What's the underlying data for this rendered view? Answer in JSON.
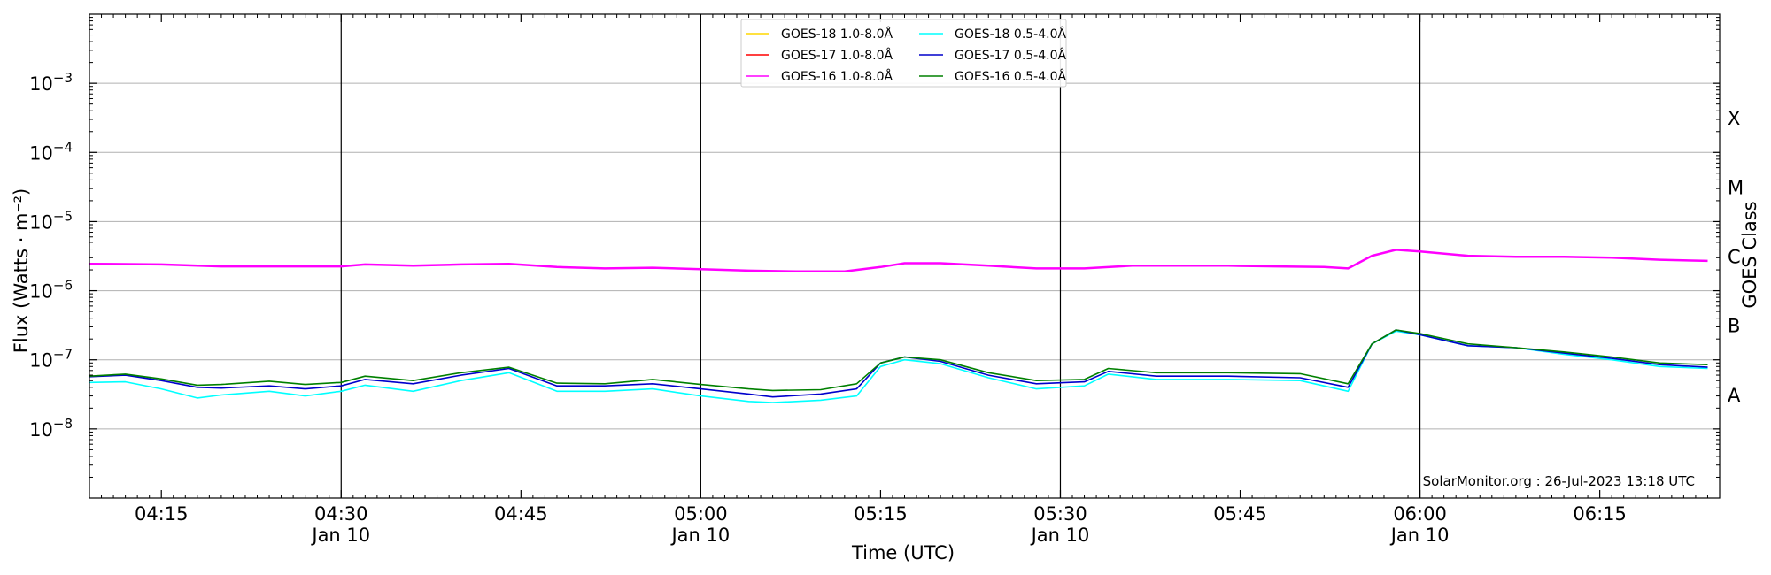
{
  "chart_data": {
    "type": "line",
    "xlabel": "Time (UTC)",
    "ylabel": "Flux (Watts · m⁻²)",
    "y2label": "GOES Class",
    "y_scale": "log",
    "ylim": [
      1e-09,
      0.01
    ],
    "xlim": [
      "04:09",
      "06:25"
    ],
    "grid": "horizontal",
    "legend_placement": "top-center",
    "credit": "SolarMonitor.org : 26-Jul-2023 13:18 UTC",
    "x_ticks": [
      {
        "t": "04:15",
        "label": "04:15",
        "sub": ""
      },
      {
        "t": "04:30",
        "label": "04:30",
        "sub": "Jan 10"
      },
      {
        "t": "04:45",
        "label": "04:45",
        "sub": ""
      },
      {
        "t": "05:00",
        "label": "05:00",
        "sub": "Jan 10"
      },
      {
        "t": "05:15",
        "label": "05:15",
        "sub": ""
      },
      {
        "t": "05:30",
        "label": "05:30",
        "sub": "Jan 10"
      },
      {
        "t": "05:45",
        "label": "05:45",
        "sub": ""
      },
      {
        "t": "06:00",
        "label": "06:00",
        "sub": "Jan 10"
      },
      {
        "t": "06:15",
        "label": "06:15",
        "sub": ""
      }
    ],
    "day_lines": [
      "04:30",
      "05:00",
      "05:30",
      "06:00"
    ],
    "y_ticks": [
      {
        "value": 0.001,
        "base": "10",
        "exp": "−3"
      },
      {
        "value": 0.0001,
        "base": "10",
        "exp": "−4"
      },
      {
        "value": 1e-05,
        "base": "10",
        "exp": "−5"
      },
      {
        "value": 1e-06,
        "base": "10",
        "exp": "−6"
      },
      {
        "value": 1e-07,
        "base": "10",
        "exp": "−7"
      },
      {
        "value": 1e-08,
        "base": "10",
        "exp": "−8"
      }
    ],
    "goes_classes": [
      {
        "label": "X",
        "value": 0.000316
      },
      {
        "label": "M",
        "value": 3.16e-05
      },
      {
        "label": "C",
        "value": 3.16e-06
      },
      {
        "label": "B",
        "value": 3.16e-07
      },
      {
        "label": "A",
        "value": 3.16e-08
      }
    ],
    "legend": [
      {
        "name": "GOES-18 1.0-8.0Å",
        "color": "#ffd700"
      },
      {
        "name": "GOES-17 1.0-8.0Å",
        "color": "#ff0000"
      },
      {
        "name": "GOES-16 1.0-8.0Å",
        "color": "#ff00ff"
      },
      {
        "name": "GOES-18 0.5-4.0Å",
        "color": "#00ffff"
      },
      {
        "name": "GOES-17 0.5-4.0Å",
        "color": "#0000cc"
      },
      {
        "name": "GOES-16 0.5-4.0Å",
        "color": "#008000"
      }
    ],
    "series": [
      {
        "name": "GOES-16 1.0-8.0Å",
        "color": "#ff00ff",
        "x": [
          "04:09",
          "04:15",
          "04:20",
          "04:25",
          "04:30",
          "04:32",
          "04:36",
          "04:40",
          "04:44",
          "04:48",
          "04:52",
          "04:56",
          "05:00",
          "05:04",
          "05:08",
          "05:12",
          "05:15",
          "05:17",
          "05:20",
          "05:24",
          "05:28",
          "05:32",
          "05:36",
          "05:40",
          "05:44",
          "05:48",
          "05:52",
          "05:54",
          "05:56",
          "05:58",
          "06:00",
          "06:04",
          "06:08",
          "06:12",
          "06:16",
          "06:20",
          "06:24"
        ],
        "y": [
          2.45e-06,
          2.4e-06,
          2.25e-06,
          2.25e-06,
          2.25e-06,
          2.4e-06,
          2.3e-06,
          2.4e-06,
          2.45e-06,
          2.2e-06,
          2.1e-06,
          2.15e-06,
          2.05e-06,
          1.95e-06,
          1.9e-06,
          1.9e-06,
          2.2e-06,
          2.5e-06,
          2.5e-06,
          2.3e-06,
          2.1e-06,
          2.1e-06,
          2.3e-06,
          2.3e-06,
          2.3e-06,
          2.25e-06,
          2.2e-06,
          2.1e-06,
          3.2e-06,
          3.9e-06,
          3.7e-06,
          3.2e-06,
          3.1e-06,
          3.1e-06,
          3e-06,
          2.8e-06,
          2.7e-06
        ]
      },
      {
        "name": "GOES-18 0.5-4.0Å",
        "color": "#00ffff",
        "x": [
          "04:09",
          "04:12",
          "04:15",
          "04:18",
          "04:20",
          "04:24",
          "04:27",
          "04:30",
          "04:32",
          "04:36",
          "04:40",
          "04:44",
          "04:48",
          "04:52",
          "04:56",
          "05:00",
          "05:04",
          "05:06",
          "05:10",
          "05:13",
          "05:15",
          "05:17",
          "05:20",
          "05:24",
          "05:28",
          "05:32",
          "05:34",
          "05:38",
          "05:44",
          "05:50",
          "05:54",
          "05:56",
          "05:58",
          "06:00",
          "06:04",
          "06:08",
          "06:12",
          "06:16",
          "06:20",
          "06:24"
        ],
        "y": [
          4.7e-08,
          4.8e-08,
          3.8e-08,
          2.8e-08,
          3.1e-08,
          3.5e-08,
          3e-08,
          3.5e-08,
          4.3e-08,
          3.5e-08,
          5e-08,
          6.5e-08,
          3.5e-08,
          3.5e-08,
          3.8e-08,
          3e-08,
          2.5e-08,
          2.4e-08,
          2.6e-08,
          3e-08,
          8e-08,
          1e-07,
          8.8e-08,
          5.5e-08,
          3.8e-08,
          4.2e-08,
          6.2e-08,
          5.2e-08,
          5.2e-08,
          5e-08,
          3.5e-08,
          1.7e-07,
          2.6e-07,
          2.3e-07,
          1.6e-07,
          1.5e-07,
          1.2e-07,
          1e-07,
          8e-08,
          7.5e-08
        ]
      },
      {
        "name": "GOES-17 0.5-4.0Å",
        "color": "#0000cc",
        "x": [
          "04:09",
          "04:12",
          "04:15",
          "04:18",
          "04:20",
          "04:24",
          "04:27",
          "04:30",
          "04:32",
          "04:36",
          "04:40",
          "04:44",
          "04:48",
          "04:52",
          "04:56",
          "05:00",
          "05:04",
          "05:06",
          "05:10",
          "05:13",
          "05:15",
          "05:17",
          "05:20",
          "05:24",
          "05:28",
          "05:32",
          "05:34",
          "05:38",
          "05:44",
          "05:50",
          "05:54",
          "05:56",
          "05:58",
          "06:00",
          "06:04",
          "06:08",
          "06:12",
          "06:16",
          "06:20",
          "06:24"
        ],
        "y": [
          5.7e-08,
          6e-08,
          5e-08,
          4e-08,
          3.9e-08,
          4.2e-08,
          3.8e-08,
          4.2e-08,
          5.2e-08,
          4.5e-08,
          6e-08,
          7.5e-08,
          4.2e-08,
          4.2e-08,
          4.5e-08,
          3.8e-08,
          3.2e-08,
          2.9e-08,
          3.2e-08,
          3.8e-08,
          9e-08,
          1.1e-07,
          9.5e-08,
          6e-08,
          4.5e-08,
          4.8e-08,
          6.8e-08,
          5.8e-08,
          5.8e-08,
          5.5e-08,
          4e-08,
          1.7e-07,
          2.7e-07,
          2.3e-07,
          1.6e-07,
          1.5e-07,
          1.25e-07,
          1.05e-07,
          8.5e-08,
          7.8e-08
        ]
      },
      {
        "name": "GOES-16 0.5-4.0Å",
        "color": "#008000",
        "x": [
          "04:09",
          "04:12",
          "04:15",
          "04:18",
          "04:20",
          "04:24",
          "04:27",
          "04:30",
          "04:32",
          "04:36",
          "04:40",
          "04:44",
          "04:48",
          "04:52",
          "04:56",
          "05:00",
          "05:04",
          "05:06",
          "05:10",
          "05:13",
          "05:15",
          "05:17",
          "05:20",
          "05:24",
          "05:28",
          "05:32",
          "05:34",
          "05:38",
          "05:44",
          "05:50",
          "05:54",
          "05:56",
          "05:58",
          "06:00",
          "06:04",
          "06:08",
          "06:12",
          "06:16",
          "06:20",
          "06:24"
        ],
        "y": [
          5.8e-08,
          6.2e-08,
          5.3e-08,
          4.3e-08,
          4.4e-08,
          4.9e-08,
          4.4e-08,
          4.7e-08,
          5.8e-08,
          5e-08,
          6.5e-08,
          7.8e-08,
          4.6e-08,
          4.5e-08,
          5.2e-08,
          4.4e-08,
          3.8e-08,
          3.6e-08,
          3.7e-08,
          4.5e-08,
          9e-08,
          1.1e-07,
          1e-07,
          6.5e-08,
          5e-08,
          5.2e-08,
          7.5e-08,
          6.5e-08,
          6.5e-08,
          6.3e-08,
          4.5e-08,
          1.7e-07,
          2.7e-07,
          2.4e-07,
          1.7e-07,
          1.5e-07,
          1.3e-07,
          1.1e-07,
          9e-08,
          8.5e-08
        ]
      }
    ]
  }
}
